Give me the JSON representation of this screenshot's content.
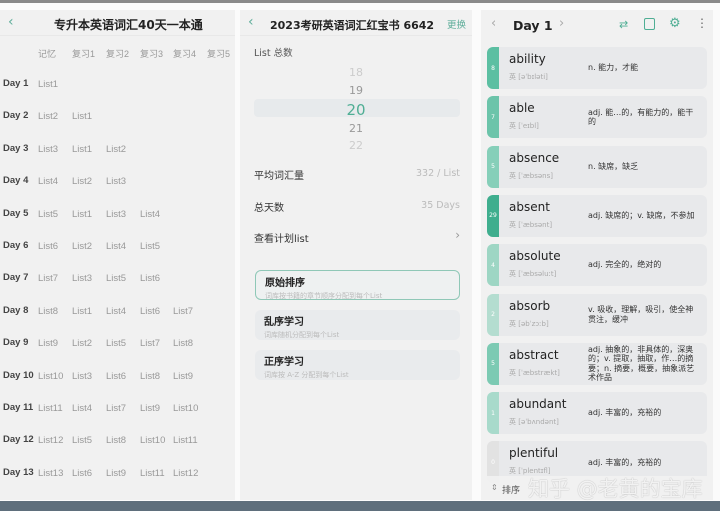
{
  "panel1": {
    "back": "‹",
    "title": "专升本英语词汇40天一本通",
    "columns": [
      "记忆",
      "复习1",
      "复习2",
      "复习3",
      "复习4",
      "复习5"
    ],
    "rows": [
      {
        "day": "Day 1",
        "lists": [
          "List1"
        ]
      },
      {
        "day": "Day 2",
        "lists": [
          "List2",
          "List1"
        ]
      },
      {
        "day": "Day 3",
        "lists": [
          "List3",
          "List1",
          "List2"
        ]
      },
      {
        "day": "Day 4",
        "lists": [
          "List4",
          "List2",
          "List3"
        ]
      },
      {
        "day": "Day 5",
        "lists": [
          "List5",
          "List1",
          "List3",
          "List4"
        ]
      },
      {
        "day": "Day 6",
        "lists": [
          "List6",
          "List2",
          "List4",
          "List5"
        ]
      },
      {
        "day": "Day 7",
        "lists": [
          "List7",
          "List3",
          "List5",
          "List6"
        ]
      },
      {
        "day": "Day 8",
        "lists": [
          "List8",
          "List1",
          "List4",
          "List6",
          "List7"
        ]
      },
      {
        "day": "Day 9",
        "lists": [
          "List9",
          "List2",
          "List5",
          "List7",
          "List8"
        ]
      },
      {
        "day": "Day 10",
        "lists": [
          "List10",
          "List3",
          "List6",
          "List8",
          "List9"
        ]
      },
      {
        "day": "Day 11",
        "lists": [
          "List11",
          "List4",
          "List7",
          "List9",
          "List10"
        ]
      },
      {
        "day": "Day 12",
        "lists": [
          "List12",
          "List5",
          "List8",
          "List10",
          "List11"
        ]
      },
      {
        "day": "Day 13",
        "lists": [
          "List13",
          "List6",
          "List9",
          "List11",
          "List12"
        ]
      }
    ]
  },
  "panel2": {
    "back": "‹",
    "title": "2023考研英语词汇红宝书 6642",
    "change": "更换",
    "list_total_label": "List 总数",
    "picker": [
      "18",
      "19",
      "20",
      "21",
      "22"
    ],
    "picker_selected": "20",
    "avg_label": "平均词汇量",
    "avg_value": "332 / List",
    "days_label": "总天数",
    "days_value": "35 Days",
    "plan_label": "查看计划list",
    "plan_chevron": "›",
    "orders": [
      {
        "title": "原始排序",
        "desc": "词库按书籍的章节顺序分配到每个List",
        "selected": true
      },
      {
        "title": "乱序学习",
        "desc": "词库随机分配到每个List",
        "selected": false
      },
      {
        "title": "正序学习",
        "desc": "词库按 A-Z 分配到每个List",
        "selected": false
      }
    ]
  },
  "panel3": {
    "prev": "‹",
    "title": "Day 1",
    "next": "›",
    "icons": [
      "switch-language-icon",
      "list-doc-icon",
      "settings-icon",
      "more-icon"
    ],
    "words": [
      {
        "count": "8",
        "word": "ability",
        "phonetic": "英 [əˈbɪləti]",
        "meaning": "n. 能力，才能",
        "color": "#5cbfa2"
      },
      {
        "count": "7",
        "word": "able",
        "phonetic": "英 [ˈeɪbl]",
        "meaning": "adj. 能…的，有能力的，能干的",
        "color": "#6cc4aa"
      },
      {
        "count": "5",
        "word": "absence",
        "phonetic": "英 [ˈæbsəns]",
        "meaning": "n. 缺席，缺乏",
        "color": "#86cfb9"
      },
      {
        "count": "29",
        "word": "absent",
        "phonetic": "英 [ˈæbsənt]",
        "meaning": "adj. 缺席的；v. 缺席，不参加",
        "color": "#3fae8e"
      },
      {
        "count": "4",
        "word": "absolute",
        "phonetic": "英 [ˈæbsəluːt]",
        "meaning": "adj. 完全的，绝对的",
        "color": "#9ed6c4"
      },
      {
        "count": "2",
        "word": "absorb",
        "phonetic": "英 [əbˈzɔːb]",
        "meaning": "v. 吸收，理解，吸引，使全神贯注，缓冲",
        "color": "#b4ddd0"
      },
      {
        "count": "5",
        "word": "abstract",
        "phonetic": "英 [ˈæbstrækt]",
        "meaning": "adj. 抽象的，非具体的，深奥的；v. 提取，抽取，作…的摘要；n. 摘要，概要，抽象派艺术作品",
        "color": "#7ccab3"
      },
      {
        "count": "1",
        "word": "abundant",
        "phonetic": "英 [əˈbʌndənt]",
        "meaning": "adj. 丰富的，充裕的",
        "color": "#a8dacb"
      },
      {
        "count": "0",
        "word": "plentiful",
        "phonetic": "英 [ˈplentɪfl]",
        "meaning": "adj. 丰富的，充裕的",
        "color": "#e2e2e2"
      }
    ],
    "sort_label": "排序"
  },
  "watermark": "知乎 @老黄的宝库"
}
